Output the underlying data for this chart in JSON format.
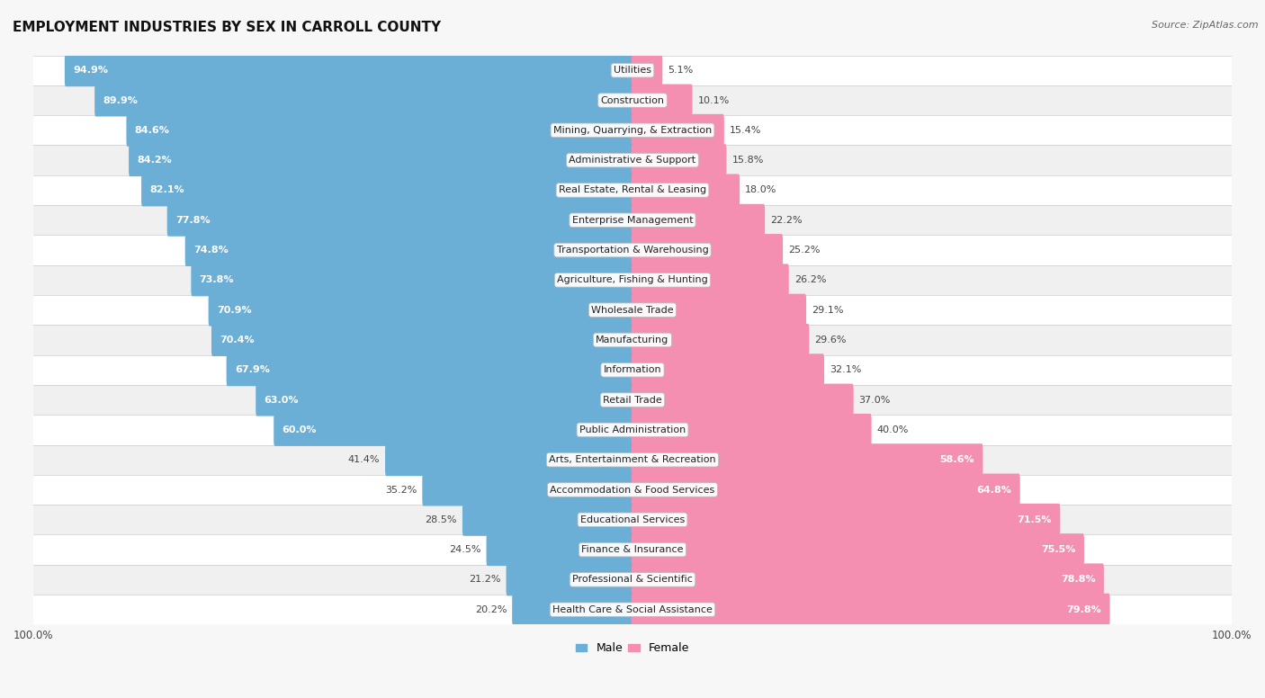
{
  "title": "EMPLOYMENT INDUSTRIES BY SEX IN CARROLL COUNTY",
  "source": "Source: ZipAtlas.com",
  "categories": [
    "Utilities",
    "Construction",
    "Mining, Quarrying, & Extraction",
    "Administrative & Support",
    "Real Estate, Rental & Leasing",
    "Enterprise Management",
    "Transportation & Warehousing",
    "Agriculture, Fishing & Hunting",
    "Wholesale Trade",
    "Manufacturing",
    "Information",
    "Retail Trade",
    "Public Administration",
    "Arts, Entertainment & Recreation",
    "Accommodation & Food Services",
    "Educational Services",
    "Finance & Insurance",
    "Professional & Scientific",
    "Health Care & Social Assistance"
  ],
  "male_pct": [
    94.9,
    89.9,
    84.6,
    84.2,
    82.1,
    77.8,
    74.8,
    73.8,
    70.9,
    70.4,
    67.9,
    63.0,
    60.0,
    41.4,
    35.2,
    28.5,
    24.5,
    21.2,
    20.2
  ],
  "female_pct": [
    5.1,
    10.1,
    15.4,
    15.8,
    18.0,
    22.2,
    25.2,
    26.2,
    29.1,
    29.6,
    32.1,
    37.0,
    40.0,
    58.6,
    64.8,
    71.5,
    75.5,
    78.8,
    79.8
  ],
  "male_color": "#6baed6",
  "female_color": "#f48fb1",
  "row_colors": [
    "#ffffff",
    "#f0f0f0"
  ],
  "title_fontsize": 11,
  "source_fontsize": 8,
  "label_fontsize": 8,
  "category_fontsize": 8,
  "bg_color": "#f7f7f7"
}
